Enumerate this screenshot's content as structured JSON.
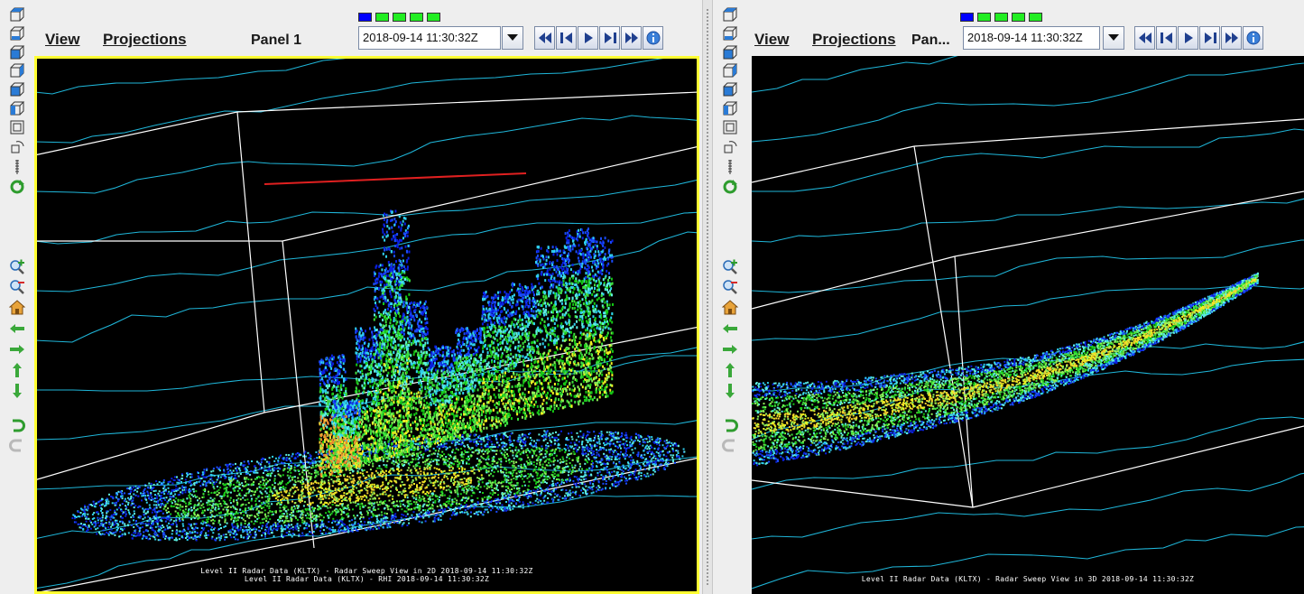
{
  "left_panel": {
    "menu_view": "View",
    "menu_projections": "Projections",
    "title": "Panel 1",
    "time_value": "2018-09-14 11:30:32Z",
    "caption_line1": "Level II Radar Data (KLTX) - Radar Sweep View in 2D 2018-09-14 11:30:32Z",
    "caption_line2": "Level II Radar Data (KLTX) - RHI 2018-09-14 11:30:32Z"
  },
  "right_panel": {
    "menu_view": "View",
    "menu_projections": "Projections",
    "title": "Pan...",
    "time_value": "2018-09-14 11:30:32Z",
    "caption_line1": "Level II Radar Data (KLTX) - Radar Sweep View in 3D 2018-09-14 11:30:32Z"
  },
  "time_steps": {
    "count": 5,
    "active_index": 0,
    "active_color": "#0000ff",
    "inactive_color": "#22ee22"
  },
  "colors": {
    "map_lines": "#1fb6d9",
    "box_lines": "#ffffff",
    "highlight_border": "#ffff33",
    "background": "#000000"
  },
  "toolbar_icons": [
    "view-top-icon",
    "view-bottom-icon",
    "view-north-icon",
    "view-east-icon",
    "view-south-icon",
    "view-west-icon",
    "view-box-icon",
    "rotate-view-icon",
    "scale-icon",
    "reset-rotation-icon",
    "zoom-in-icon",
    "zoom-out-icon",
    "home-icon",
    "pan-left-icon",
    "pan-right-icon",
    "pan-up-icon",
    "pan-down-icon",
    "undo-icon",
    "redo-icon"
  ],
  "nav_buttons": [
    "first-frame-icon",
    "previous-frame-icon",
    "play-icon",
    "next-frame-icon",
    "last-frame-icon",
    "info-icon"
  ]
}
